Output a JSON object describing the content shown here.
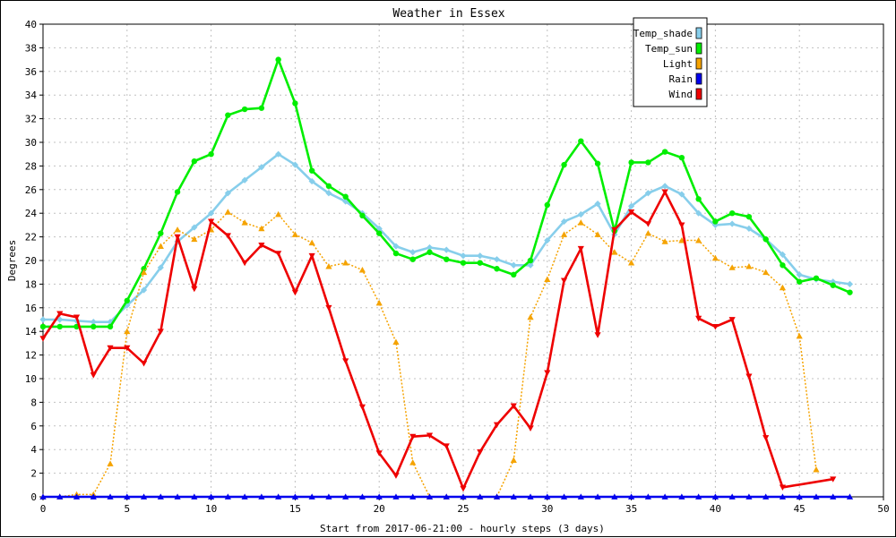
{
  "chart_data": {
    "type": "line",
    "title": "Weather in Essex",
    "xlabel": "Start from 2017-06-21:00 - hourly steps (3 days)",
    "ylabel": "Degrees",
    "xlim": [
      0,
      50
    ],
    "ylim": [
      0,
      40
    ],
    "x_ticks": [
      0,
      5,
      10,
      15,
      20,
      25,
      30,
      35,
      40,
      45,
      50
    ],
    "y_ticks": [
      0,
      2,
      4,
      6,
      8,
      10,
      12,
      14,
      16,
      18,
      20,
      22,
      24,
      26,
      28,
      30,
      32,
      34,
      36,
      38,
      40
    ],
    "grid": true,
    "legend_position": "top-right",
    "series": [
      {
        "name": "Temp_shade",
        "color": "#87ceeb",
        "marker": "diamond",
        "line": "solid",
        "x": [
          0,
          1,
          2,
          3,
          4,
          5,
          6,
          7,
          8,
          9,
          10,
          11,
          12,
          13,
          14,
          15,
          16,
          17,
          18,
          19,
          20,
          21,
          22,
          23,
          24,
          25,
          26,
          27,
          28,
          29,
          30,
          31,
          32,
          33,
          34,
          35,
          36,
          37,
          38,
          39,
          40,
          41,
          42,
          43,
          44,
          45,
          46,
          47,
          48
        ],
        "values": [
          15.0,
          15.0,
          14.9,
          14.8,
          14.8,
          16.2,
          17.5,
          19.4,
          21.6,
          22.8,
          24.0,
          25.7,
          26.8,
          27.9,
          29.0,
          28.1,
          26.7,
          25.7,
          25.0,
          24.0,
          22.7,
          21.2,
          20.7,
          21.1,
          20.9,
          20.4,
          20.4,
          20.1,
          19.6,
          19.6,
          21.7,
          23.3,
          23.9,
          24.8,
          22.2,
          24.6,
          25.7,
          26.3,
          25.6,
          24.0,
          23.0,
          23.1,
          22.7,
          21.8,
          20.5,
          18.8,
          18.4,
          18.2,
          18.0
        ]
      },
      {
        "name": "Temp_sun",
        "color": "#00ee00",
        "marker": "circle",
        "line": "solid",
        "x": [
          0,
          1,
          2,
          3,
          4,
          5,
          6,
          7,
          8,
          9,
          10,
          11,
          12,
          13,
          14,
          15,
          16,
          17,
          18,
          19,
          20,
          21,
          22,
          23,
          24,
          25,
          26,
          27,
          28,
          29,
          30,
          31,
          32,
          33,
          34,
          35,
          36,
          37,
          38,
          39,
          40,
          41,
          42,
          43,
          44,
          45,
          46,
          47,
          48
        ],
        "values": [
          14.4,
          14.4,
          14.4,
          14.4,
          14.4,
          16.6,
          19.3,
          22.3,
          25.8,
          28.4,
          29.0,
          32.3,
          32.8,
          32.9,
          37.0,
          33.3,
          27.6,
          26.3,
          25.4,
          23.8,
          22.3,
          20.6,
          20.1,
          20.7,
          20.1,
          19.8,
          19.8,
          19.3,
          18.8,
          20.0,
          24.7,
          28.1,
          30.1,
          28.2,
          22.5,
          28.3,
          28.3,
          29.2,
          28.7,
          25.2,
          23.3,
          24.0,
          23.7,
          21.8,
          19.6,
          18.2,
          18.5,
          17.9,
          17.3
        ]
      },
      {
        "name": "Light",
        "color": "#f5a300",
        "marker": "triangle-up",
        "line": "dotted",
        "x": [
          0,
          1,
          2,
          3,
          4,
          5,
          6,
          7,
          8,
          9,
          10,
          11,
          12,
          13,
          14,
          15,
          16,
          17,
          18,
          19,
          20,
          21,
          22,
          23,
          24,
          25,
          26,
          27,
          28,
          29,
          30,
          31,
          32,
          33,
          34,
          35,
          36,
          37,
          38,
          39,
          40,
          41,
          42,
          43,
          44,
          45,
          46,
          47,
          48
        ],
        "values": [
          0.0,
          0.0,
          0.2,
          0.2,
          2.8,
          14.0,
          19.0,
          21.2,
          22.6,
          21.8,
          22.6,
          24.1,
          23.2,
          22.7,
          23.9,
          22.2,
          21.5,
          19.5,
          19.8,
          19.2,
          16.4,
          13.1,
          2.9,
          0.0,
          0.0,
          0.0,
          0.0,
          0.0,
          3.1,
          15.2,
          18.4,
          22.2,
          23.2,
          22.2,
          20.7,
          19.8,
          22.3,
          21.6,
          21.7,
          21.7,
          20.2,
          19.4,
          19.5,
          19.0,
          17.7,
          13.6,
          2.3,
          null,
          null
        ]
      },
      {
        "name": "Rain",
        "color": "#0000ee",
        "marker": "triangle-up",
        "line": "solid",
        "x": [
          0,
          1,
          2,
          3,
          4,
          5,
          6,
          7,
          8,
          9,
          10,
          11,
          12,
          13,
          14,
          15,
          16,
          17,
          18,
          19,
          20,
          21,
          22,
          23,
          24,
          25,
          26,
          27,
          28,
          29,
          30,
          31,
          32,
          33,
          34,
          35,
          36,
          37,
          38,
          39,
          40,
          41,
          42,
          43,
          44,
          45,
          46,
          47,
          48
        ],
        "values": [
          0,
          0,
          0,
          0,
          0,
          0,
          0,
          0,
          0,
          0,
          0,
          0,
          0,
          0,
          0,
          0,
          0,
          0,
          0,
          0,
          0,
          0,
          0,
          0,
          0,
          0,
          0,
          0,
          0,
          0,
          0,
          0,
          0,
          0,
          0,
          0,
          0,
          0,
          0,
          0,
          0,
          0,
          0,
          0,
          0,
          0,
          0,
          0,
          0
        ]
      },
      {
        "name": "Wind",
        "color": "#ee0000",
        "marker": "triangle-down",
        "line": "solid",
        "x": [
          0,
          1,
          2,
          3,
          4,
          5,
          6,
          7,
          8,
          9,
          10,
          11,
          12,
          13,
          14,
          15,
          16,
          17,
          18,
          19,
          20,
          21,
          22,
          23,
          24,
          25,
          26,
          27,
          28,
          29,
          30,
          31,
          32,
          33,
          34,
          35,
          36,
          37,
          38,
          39,
          40,
          41,
          42,
          43,
          44,
          47
        ],
        "values": [
          13.4,
          15.5,
          15.2,
          10.3,
          12.6,
          12.6,
          11.3,
          14.0,
          22.0,
          17.6,
          23.3,
          22.1,
          19.8,
          21.3,
          20.6,
          17.3,
          20.4,
          16.0,
          11.5,
          7.6,
          3.7,
          1.8,
          5.1,
          5.2,
          4.3,
          0.7,
          3.8,
          6.1,
          7.7,
          5.8,
          10.5,
          18.3,
          21.0,
          13.7,
          22.6,
          24.1,
          23.1,
          25.8,
          23.0,
          15.1,
          14.4,
          15.0,
          10.2,
          5.0,
          0.8,
          1.5
        ]
      }
    ]
  }
}
